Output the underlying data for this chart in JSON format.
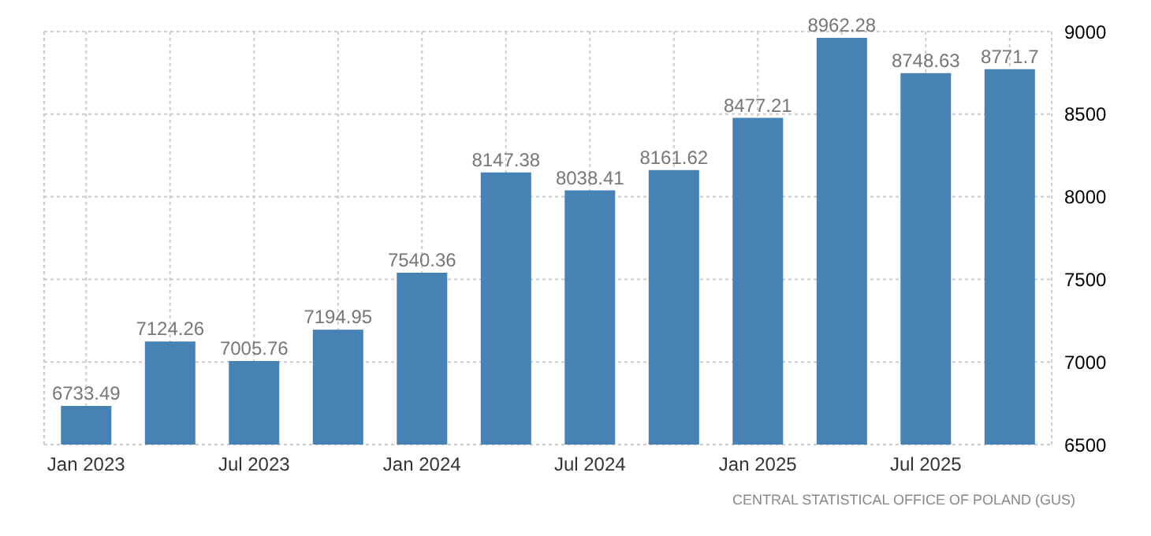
{
  "chart_data": {
    "type": "bar",
    "categories": [
      "Jan 2023",
      null,
      "Jul 2023",
      null,
      "Jan 2024",
      null,
      "Jul 2024",
      null,
      "Jan 2025",
      null,
      "Jul 2025",
      null
    ],
    "values": [
      6733.49,
      7124.26,
      7005.76,
      7194.95,
      7540.36,
      8147.38,
      8038.41,
      8161.62,
      8477.21,
      8962.28,
      8748.63,
      8771.7
    ],
    "color": "#4682b4",
    "data_labels": true,
    "ylim": [
      6500,
      9000
    ],
    "yticks": [
      6500,
      7000,
      7500,
      8000,
      8500,
      9000
    ],
    "grid": true,
    "annotations": [
      "CENTRAL STATISTICAL OFFICE OF POLAND (GUS)"
    ]
  }
}
